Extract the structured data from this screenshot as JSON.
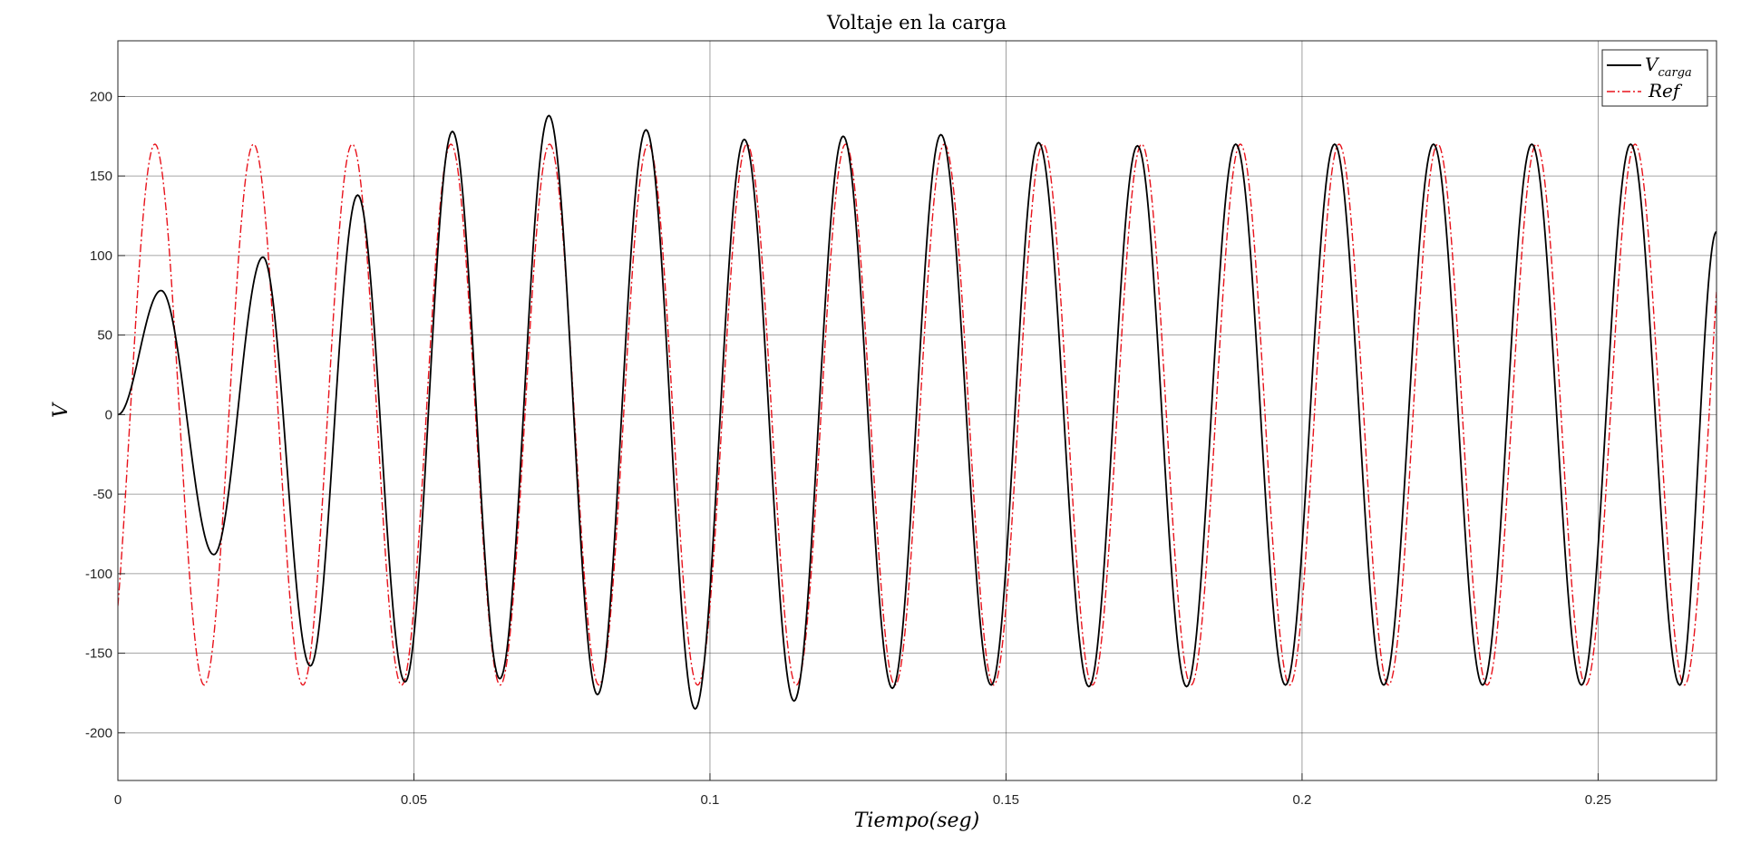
{
  "chart_data": {
    "type": "line",
    "title": "Voltaje en la carga",
    "xlabel": "Tiempo(seg)",
    "ylabel": "V",
    "xlim": [
      0,
      0.27
    ],
    "ylim": [
      -230,
      235
    ],
    "x_ticks": [
      0,
      0.05,
      0.1,
      0.15,
      0.2,
      0.25
    ],
    "x_tick_labels": [
      "0",
      "0.05",
      "0.1",
      "0.15",
      "0.2",
      "0.25"
    ],
    "y_ticks": [
      200,
      150,
      100,
      50,
      0,
      -50,
      -100,
      -150,
      -200
    ],
    "y_tick_labels": [
      "200",
      "150",
      "100",
      "50",
      "0",
      "-50",
      "-100",
      "-150",
      "-200"
    ],
    "grid": true,
    "legend_position": "top-right",
    "series": [
      {
        "name": "V_carga",
        "legend_main": "V",
        "legend_sub": "carga",
        "color": "#000000",
        "style": "solid",
        "x": [
          0,
          0.0073,
          0.0162,
          0.0245,
          0.0325,
          0.0405,
          0.0485,
          0.0565,
          0.0645,
          0.0728,
          0.081,
          0.0892,
          0.0975,
          0.1058,
          0.1142,
          0.1225,
          0.1308,
          0.139,
          0.1475,
          0.1555,
          0.164,
          0.1722,
          0.1805,
          0.1888,
          0.1972,
          0.2055,
          0.2138,
          0.2222,
          0.2305,
          0.2388,
          0.2472,
          0.2555,
          0.2638,
          0.27
        ],
        "y": [
          0,
          78,
          -88,
          99,
          -158,
          138,
          -168,
          178,
          -166,
          188,
          -176,
          179,
          -185,
          173,
          -180,
          175,
          -172,
          176,
          -170,
          171,
          -171,
          169,
          -171,
          170,
          -170,
          170,
          -170,
          170,
          -170,
          170,
          -170,
          170,
          -170,
          115
        ]
      },
      {
        "name": "Ref",
        "color": "#e8121b",
        "style": "dashdot",
        "amplitude": 170,
        "frequency_hz": 60,
        "phase_deg": -45,
        "x_range": [
          0,
          0.27
        ]
      }
    ]
  }
}
